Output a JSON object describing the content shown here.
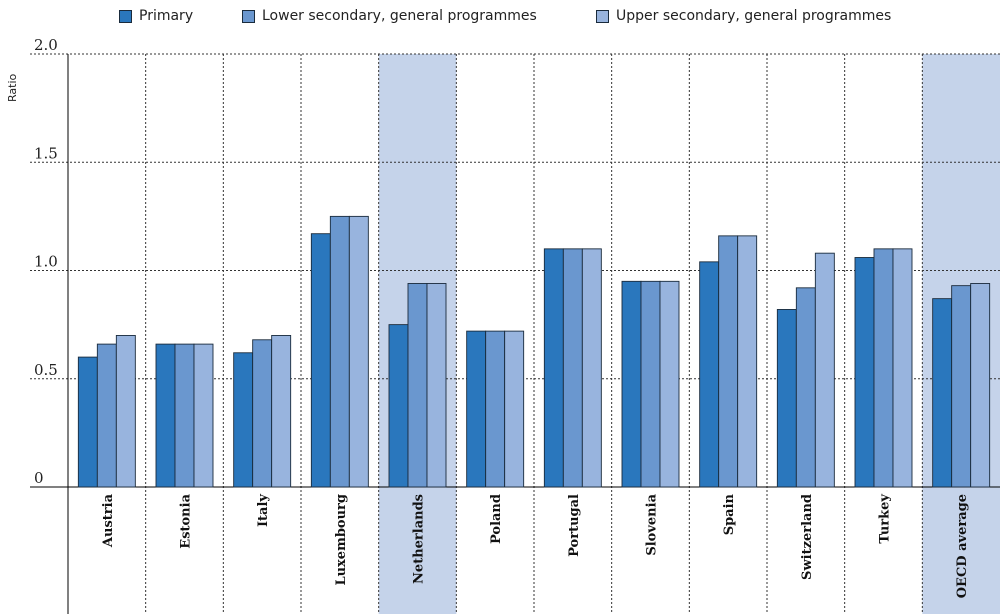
{
  "legend": {
    "items": [
      {
        "label": "Primary",
        "color": "#2a77bd"
      },
      {
        "label": "Lower secondary, general programmes",
        "color": "#6a97cf"
      },
      {
        "label": "Upper secondary, general programmes",
        "color": "#98b4de"
      }
    ]
  },
  "colors": {
    "highlight_band": "#c5d3ea",
    "bar_border": "#1a2b3c",
    "grid": "#333333"
  },
  "chart_data": {
    "type": "bar",
    "title": "",
    "xlabel": "",
    "ylabel": "Ratio",
    "ylim": [
      0,
      2.0
    ],
    "yticks": [
      "0",
      "0.5",
      "1.0",
      "1.5",
      "2.0"
    ],
    "highlighted_categories": [
      "Netherlands",
      "OECD average"
    ],
    "grid": true,
    "legend_position": "top",
    "categories": [
      "Austria",
      "Estonia",
      "Italy",
      "Luxembourg",
      "Netherlands",
      "Poland",
      "Portugal",
      "Slovenia",
      "Spain",
      "Switzerland",
      "Turkey",
      "OECD average"
    ],
    "series": [
      {
        "name": "Primary",
        "values": [
          0.6,
          0.66,
          0.62,
          1.17,
          0.75,
          0.72,
          1.1,
          0.95,
          1.04,
          0.82,
          1.06,
          0.87
        ]
      },
      {
        "name": "Lower secondary, general programmes",
        "values": [
          0.66,
          0.66,
          0.68,
          1.25,
          0.94,
          0.72,
          1.1,
          0.95,
          1.16,
          0.92,
          1.1,
          0.93
        ]
      },
      {
        "name": "Upper secondary, general programmes",
        "values": [
          0.7,
          0.66,
          0.7,
          1.25,
          0.94,
          0.72,
          1.1,
          0.95,
          1.16,
          1.08,
          1.1,
          0.94
        ]
      }
    ]
  }
}
